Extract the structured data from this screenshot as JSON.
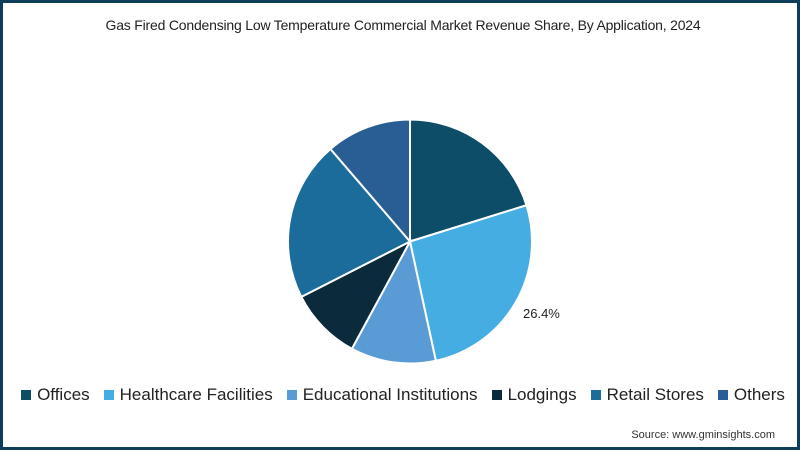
{
  "title": "Gas Fired Condensing Low Temperature Commercial Market Revenue Share, By Application, 2024",
  "source": "Source: www.gminsights.com",
  "frame": {
    "border_color": "#0e3d5a"
  },
  "legend": {
    "items": [
      {
        "label": "Offices",
        "color": "#0d4d68"
      },
      {
        "label": "Healthcare Facilities",
        "color": "#45ade2"
      },
      {
        "label": "Educational Institutions",
        "color": "#5b9bd5"
      },
      {
        "label": "Lodgings",
        "color": "#0b2b3c"
      },
      {
        "label": "Retail Stores",
        "color": "#1b6b9b"
      },
      {
        "label": "Others",
        "color": "#285e93"
      }
    ]
  },
  "chart_data": {
    "type": "pie",
    "title": "Gas Fired Condensing Low Temperature Commercial Market Revenue Share, By Application, 2024",
    "categories": [
      "Offices",
      "Healthcare Facilities",
      "Educational Institutions",
      "Lodgings",
      "Retail Stores",
      "Others"
    ],
    "values": [
      20.2,
      26.4,
      11.3,
      9.6,
      21.2,
      11.3
    ],
    "unit": "%",
    "colors": [
      "#0d4d68",
      "#45ade2",
      "#5b9bd5",
      "#0b2b3c",
      "#1b6b9b",
      "#285e93"
    ],
    "start_angle_deg": 0,
    "direction": "clockwise",
    "data_labels": [
      {
        "category": "Healthcare Facilities",
        "text": "26.4%"
      }
    ],
    "legend_position": "bottom",
    "center": [
      407,
      238.5
    ],
    "radius": 122
  }
}
